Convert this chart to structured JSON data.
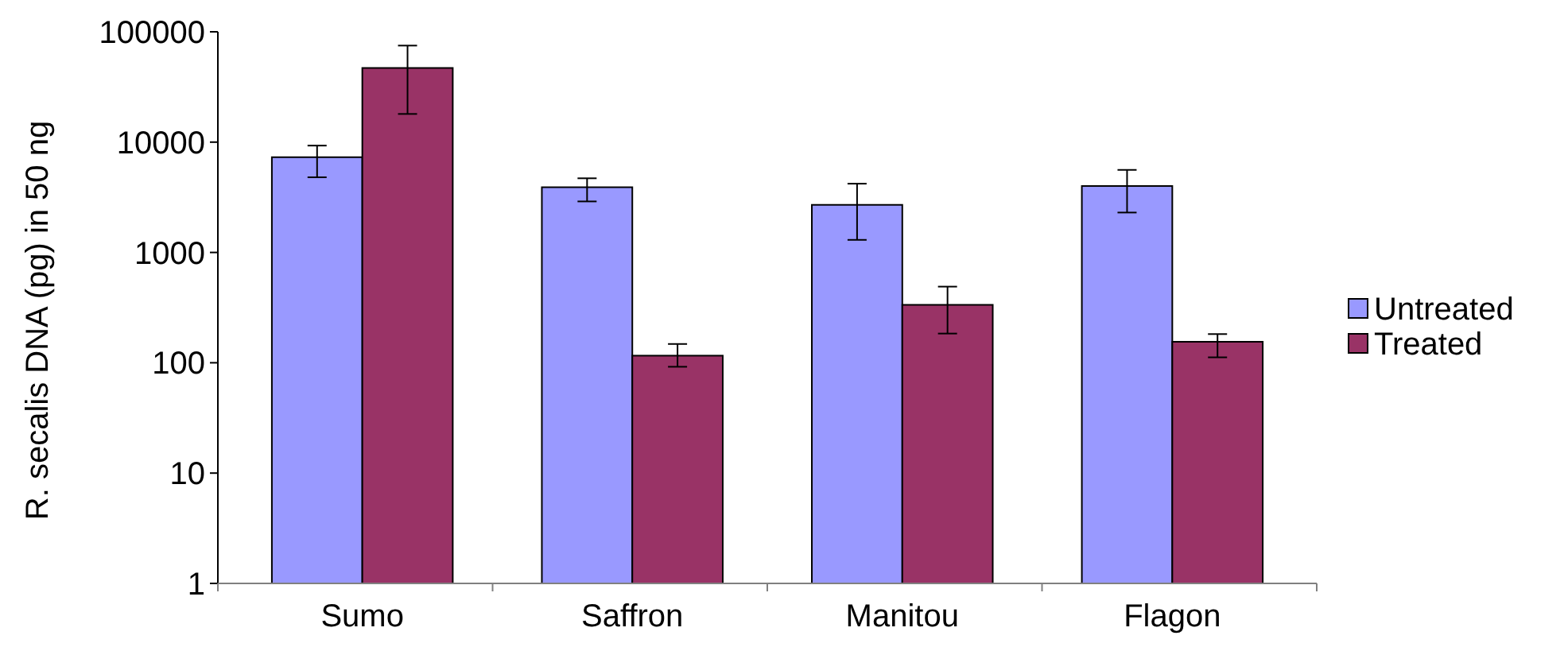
{
  "chart_data": {
    "type": "bar",
    "ylabel": "R. secalis DNA (pg) in 50 ng",
    "categories": [
      "Sumo",
      "Saffron",
      "Manitou",
      "Flagon"
    ],
    "series": [
      {
        "name": "Untreated",
        "color": "#9999ff",
        "values": [
          7300,
          3900,
          2700,
          4000
        ],
        "errors": [
          [
            4800,
            9300
          ],
          [
            2900,
            4700
          ],
          [
            1300,
            4200
          ],
          [
            2300,
            5600
          ]
        ]
      },
      {
        "name": "Treated",
        "color": "#993366",
        "values": [
          47000,
          116,
          335,
          155
        ],
        "errors": [
          [
            18000,
            75000
          ],
          [
            92,
            148
          ],
          [
            184,
            490
          ],
          [
            112,
            182
          ]
        ]
      }
    ],
    "log": true,
    "ylim": [
      1,
      100000
    ],
    "yticks": [
      1,
      10,
      100,
      1000,
      10000,
      100000
    ],
    "grid": false,
    "legend": "right"
  }
}
